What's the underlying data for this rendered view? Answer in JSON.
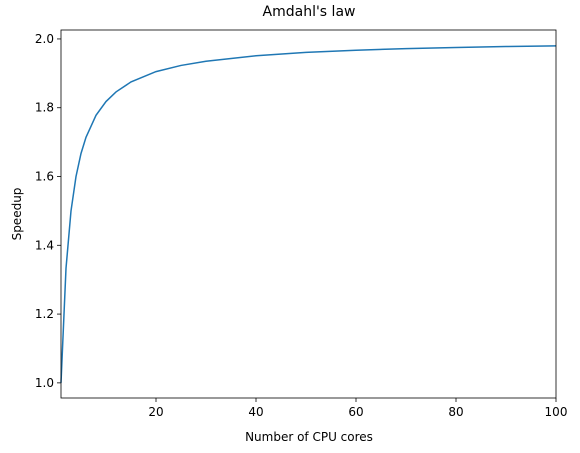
{
  "chart_data": {
    "type": "line",
    "title": "Amdahl's law",
    "x_label": "Number of CPU cores",
    "y_label": "Speedup",
    "x": [
      1,
      2,
      3,
      4,
      5,
      6,
      8,
      10,
      12,
      15,
      20,
      25,
      30,
      40,
      50,
      60,
      70,
      80,
      90,
      100
    ],
    "series": [
      {
        "name": "Speedup",
        "color": "#1f77b4",
        "values": [
          1.0,
          1.333,
          1.5,
          1.6,
          1.667,
          1.714,
          1.778,
          1.818,
          1.846,
          1.875,
          1.905,
          1.923,
          1.935,
          1.951,
          1.961,
          1.967,
          1.972,
          1.975,
          1.978,
          1.98
        ]
      }
    ],
    "xlim": [
      1,
      100
    ],
    "xticks": [
      20,
      40,
      60,
      80,
      100
    ],
    "ylim": [
      0.956,
      2.026
    ],
    "yticks": [
      {
        "value": 1,
        "label": "1.0"
      },
      1.2,
      1.4,
      1.6,
      1.8,
      {
        "value": 2,
        "label": "2.0"
      }
    ],
    "grid": false
  }
}
